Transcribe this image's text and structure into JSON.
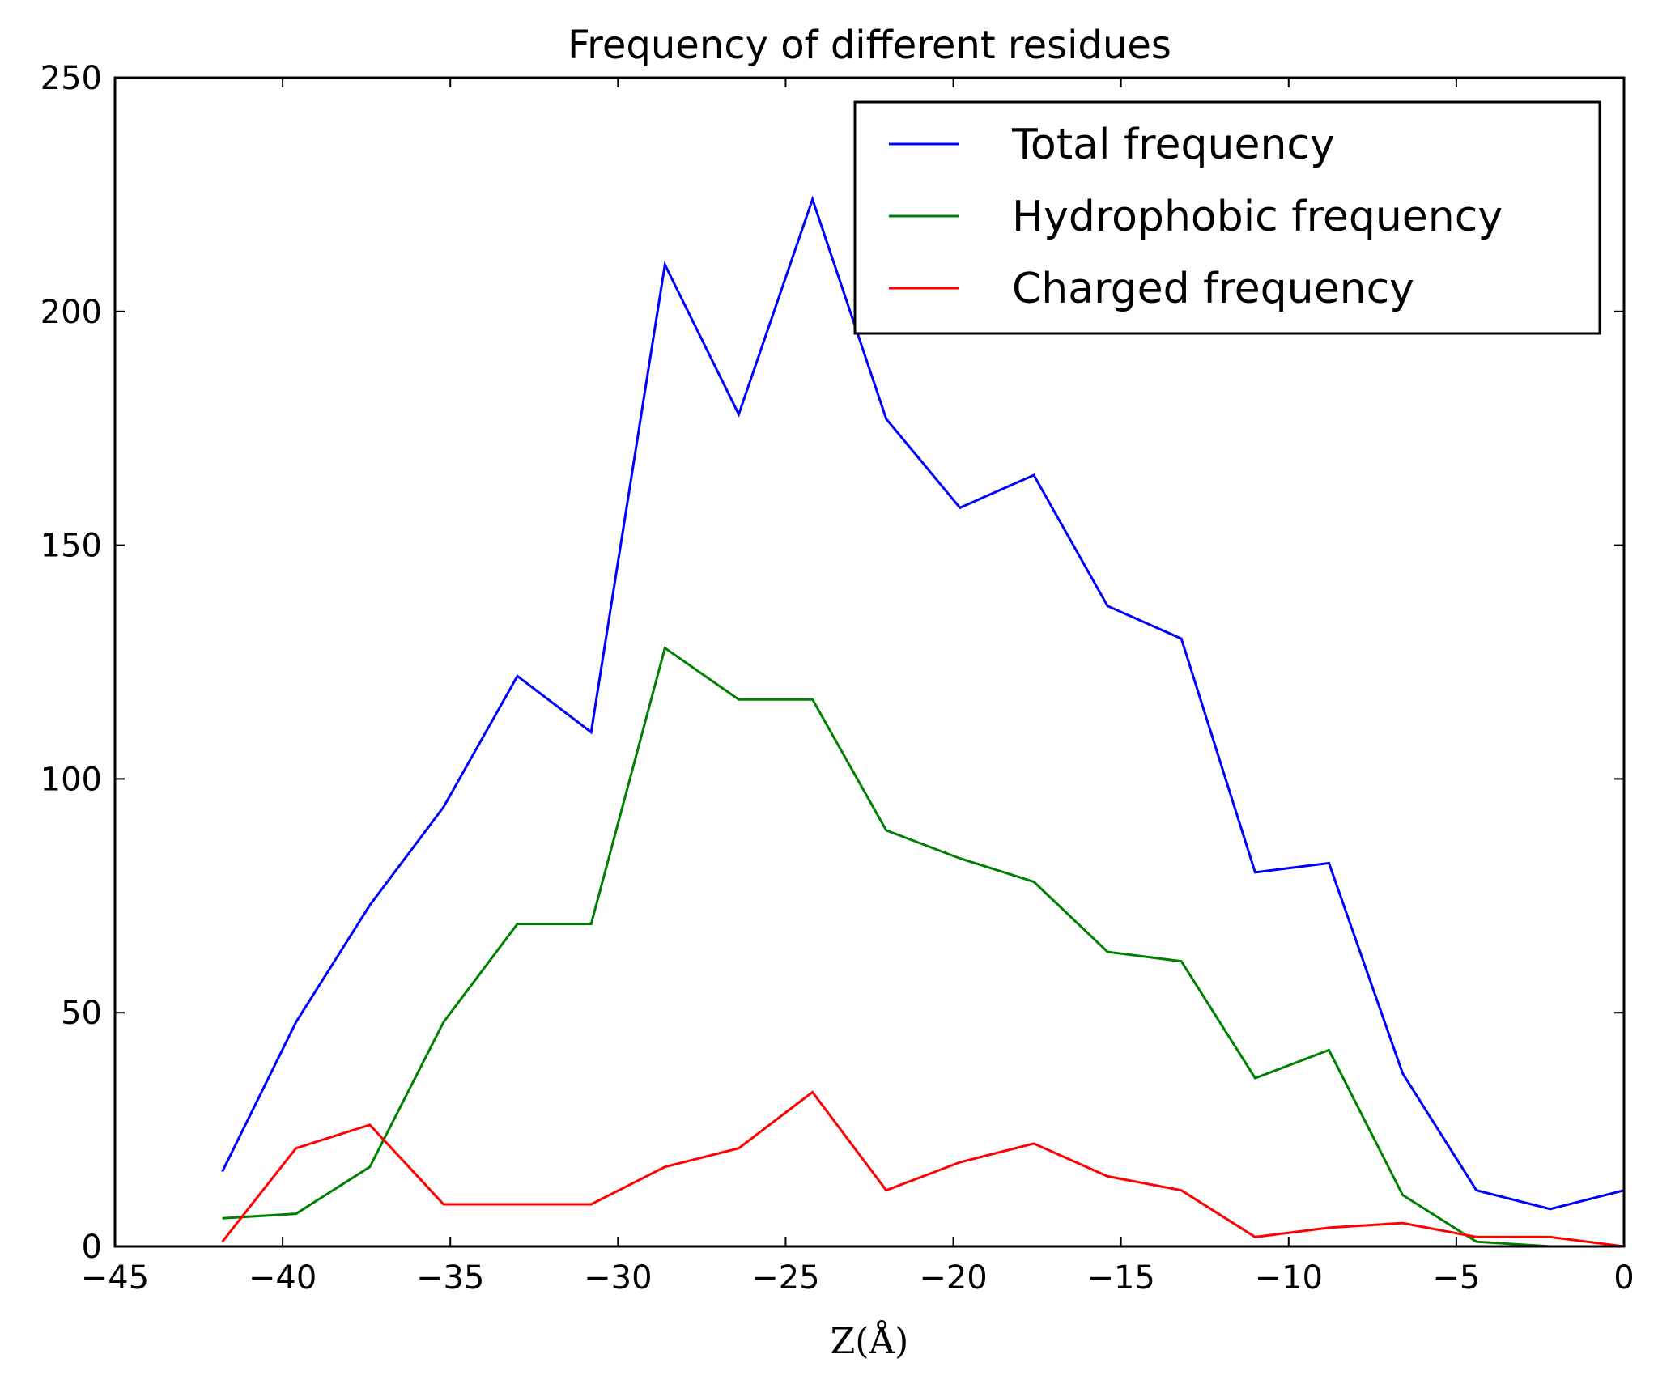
{
  "chart_data": {
    "type": "line",
    "title": "Frequency of different residues",
    "xlabel": "Z(Å)",
    "ylabel": "",
    "xlim": [
      -45,
      0
    ],
    "ylim": [
      0,
      250
    ],
    "xticks": [
      -45,
      -40,
      -35,
      -30,
      -25,
      -20,
      -15,
      -10,
      -5,
      0
    ],
    "yticks": [
      0,
      50,
      100,
      150,
      200,
      250
    ],
    "xtick_labels": [
      "−45",
      "−40",
      "−35",
      "−30",
      "−25",
      "−20",
      "−15",
      "−10",
      "−5",
      "0"
    ],
    "ytick_labels": [
      "0",
      "50",
      "100",
      "150",
      "200",
      "250"
    ],
    "grid": false,
    "legend_position": "top-right",
    "x": [
      -41.8,
      -39.6,
      -37.4,
      -35.2,
      -33.0,
      -30.8,
      -28.6,
      -26.4,
      -24.2,
      -22.0,
      -19.8,
      -17.6,
      -15.4,
      -13.2,
      -11.0,
      -8.8,
      -6.6,
      -4.4,
      -2.2,
      0.0
    ],
    "series": [
      {
        "name": "Total frequency",
        "color": "#0000ff",
        "values": [
          16,
          48,
          73,
          94,
          122,
          110,
          210,
          178,
          224,
          177,
          158,
          165,
          137,
          130,
          80,
          82,
          37,
          12,
          8,
          12
        ]
      },
      {
        "name": "Hydrophobic frequency",
        "color": "#008000",
        "values": [
          6,
          7,
          17,
          48,
          69,
          69,
          128,
          117,
          117,
          89,
          83,
          78,
          63,
          61,
          36,
          42,
          11,
          1,
          0,
          0
        ]
      },
      {
        "name": "Charged frequency",
        "color": "#ff0000",
        "values": [
          1,
          21,
          26,
          9,
          9,
          9,
          17,
          21,
          33,
          12,
          18,
          22,
          15,
          12,
          2,
          4,
          5,
          2,
          2,
          0
        ]
      }
    ]
  }
}
